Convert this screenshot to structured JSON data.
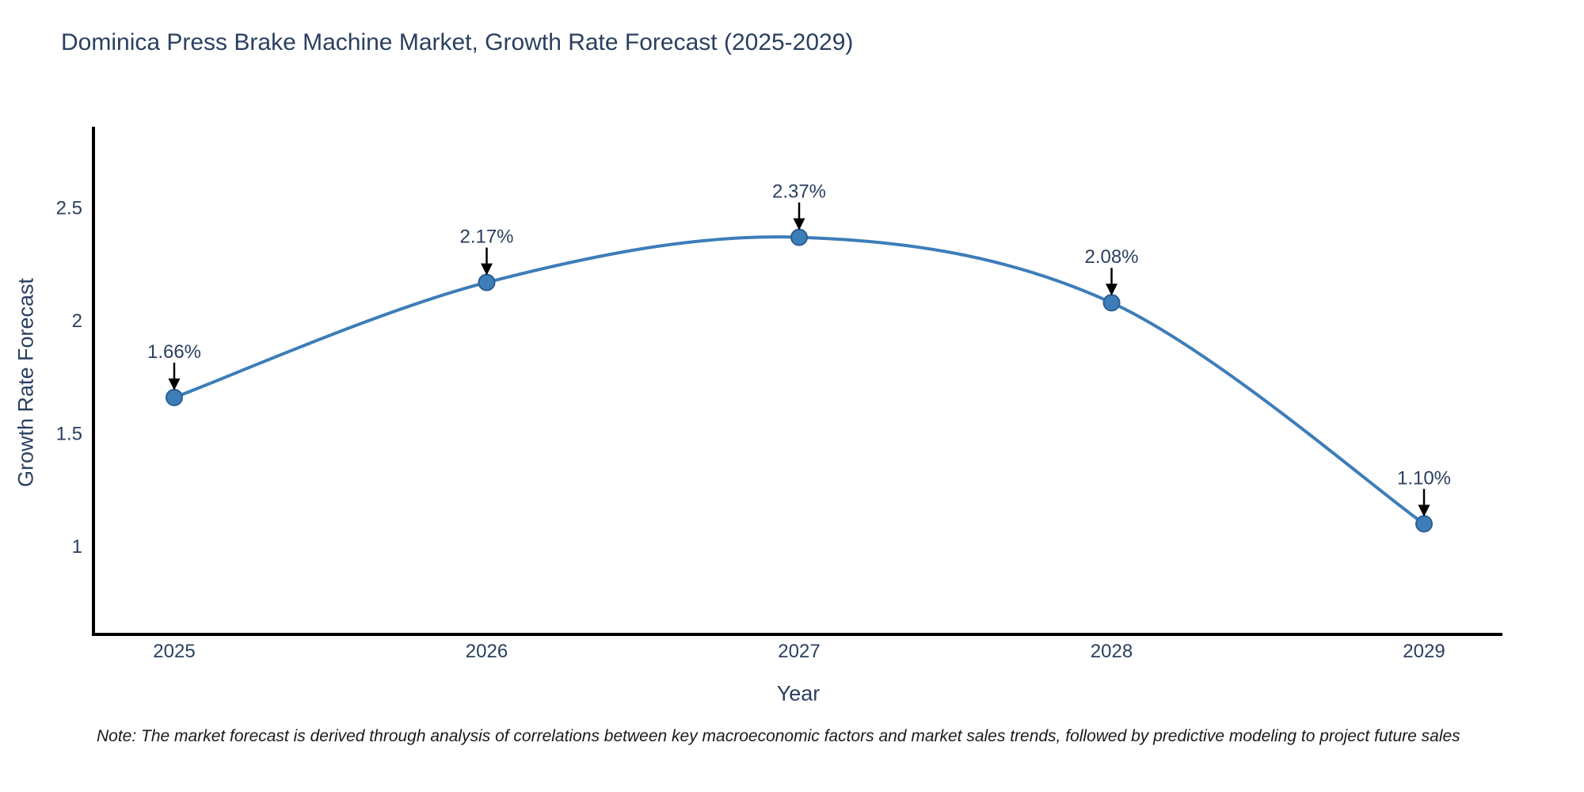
{
  "title": "Dominica Press Brake Machine Market, Growth Rate Forecast (2025-2029)",
  "note": "Note: The market forecast is derived through analysis of correlations between key macroeconomic factors and market sales trends, followed by predictive modeling to project future sales",
  "chart_data": {
    "type": "line",
    "title": "Dominica Press Brake Machine Market, Growth Rate Forecast (2025-2029)",
    "x": [
      2025,
      2026,
      2027,
      2028,
      2029
    ],
    "categories": [
      "2025",
      "2026",
      "2027",
      "2028",
      "2029"
    ],
    "values": [
      1.66,
      2.17,
      2.37,
      2.08,
      1.1
    ],
    "point_labels": [
      "1.66%",
      "2.17%",
      "2.37%",
      "2.08%",
      "1.10%"
    ],
    "xlabel": "Year",
    "ylabel": "Growth Rate Forecast",
    "ylim": [
      0.61,
      2.86
    ],
    "yticks": [
      1,
      1.5,
      2,
      2.5
    ],
    "ytick_labels": [
      "1",
      "1.5",
      "2",
      "2.5"
    ],
    "grid": false,
    "legend": "none",
    "curve": "spline",
    "line_color": "#3d7db8",
    "marker_fill_color": "#3d7db8",
    "marker_edge_color": "#2d5f94",
    "annotation_arrow_color": "#000000",
    "axis_color": "#000000",
    "text_color": "#2a3f5f"
  }
}
